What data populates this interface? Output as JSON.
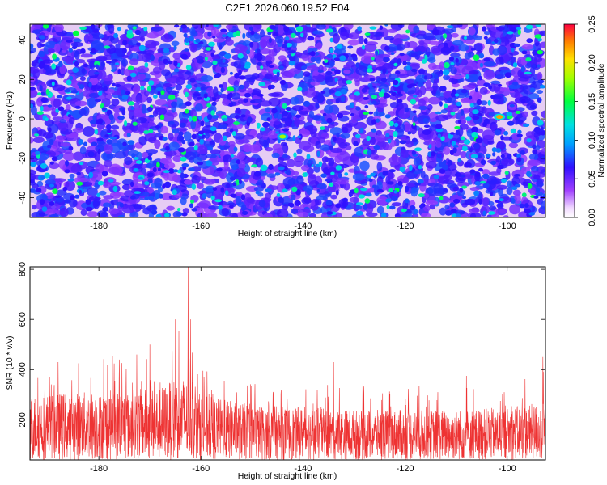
{
  "title": "C2E1.2026.060.19.52.E04",
  "colors": {
    "snr_line": "#ee3333",
    "frame": "#000000"
  },
  "chart_data": [
    {
      "type": "heatmap",
      "xlabel": "Height of straight line (km)",
      "ylabel": "Frequency (Hz)",
      "xlim": [
        -193.5,
        -92.5
      ],
      "ylim": [
        -50,
        48
      ],
      "x_ticks": [
        -180,
        -160,
        -140,
        -120,
        -100
      ],
      "y_ticks": [
        -40,
        -20,
        0,
        20,
        40
      ],
      "x_tick_labels": [
        "-180",
        "-160",
        "-140",
        "-120",
        "-100"
      ],
      "y_tick_labels": [
        "-40",
        "-20",
        "0",
        "20",
        "40"
      ],
      "colorbar": {
        "label": "Normalized spectral amplitude",
        "range": [
          0.0,
          0.25
        ],
        "ticks": [
          0.0,
          0.05,
          0.1,
          0.15,
          0.2,
          0.25
        ],
        "tick_labels": [
          "0.00",
          "0.05",
          "0.10",
          "0.15",
          "0.20",
          "0.25"
        ],
        "colormap": "rainbow"
      },
      "peaks": [
        {
          "x": -101.5,
          "y": 1,
          "value": 0.22
        },
        {
          "x": -144,
          "y": -9,
          "value": 0.18
        }
      ]
    },
    {
      "type": "line",
      "xlabel": "Height of straight line (km)",
      "ylabel": "SNR (10 * v/v)",
      "xlim": [
        -193.5,
        -92.5
      ],
      "ylim": [
        40,
        810
      ],
      "x_ticks": [
        -180,
        -160,
        -140,
        -120,
        -100
      ],
      "y_ticks": [
        200,
        400,
        600,
        800
      ],
      "x_tick_labels": [
        "-180",
        "-160",
        "-140",
        "-120",
        "-100"
      ],
      "y_tick_labels": [
        "200",
        "400",
        "600",
        "800"
      ],
      "baseline": 40,
      "envelope": [
        {
          "x": -193.5,
          "typical_max": 300,
          "peak": 390
        },
        {
          "x": -185,
          "typical_max": 310,
          "peak": 430
        },
        {
          "x": -175,
          "typical_max": 320,
          "peak": 470
        },
        {
          "x": -168,
          "typical_max": 330,
          "peak": 500
        },
        {
          "x": -164,
          "typical_max": 380,
          "peak": 560
        },
        {
          "x": -160,
          "typical_max": 300,
          "peak": 400
        },
        {
          "x": -150,
          "typical_max": 260,
          "peak": 350
        },
        {
          "x": -140,
          "typical_max": 250,
          "peak": 320
        },
        {
          "x": -130,
          "typical_max": 240,
          "peak": 360
        },
        {
          "x": -120,
          "typical_max": 240,
          "peak": 340
        },
        {
          "x": -110,
          "typical_max": 240,
          "peak": 330
        },
        {
          "x": -100,
          "typical_max": 250,
          "peak": 340
        },
        {
          "x": -92.5,
          "typical_max": 270,
          "peak": 460
        }
      ],
      "spikes": [
        {
          "x": -162.5,
          "value": 810
        },
        {
          "x": -162.0,
          "value": 600
        },
        {
          "x": -165.0,
          "value": 600
        },
        {
          "x": -170.0,
          "value": 500
        },
        {
          "x": -188.0,
          "value": 430
        },
        {
          "x": -184.0,
          "value": 425
        },
        {
          "x": -176.0,
          "value": 440
        },
        {
          "x": -134.0,
          "value": 430
        },
        {
          "x": -108.0,
          "value": 375
        },
        {
          "x": -93.0,
          "value": 450
        }
      ]
    }
  ]
}
